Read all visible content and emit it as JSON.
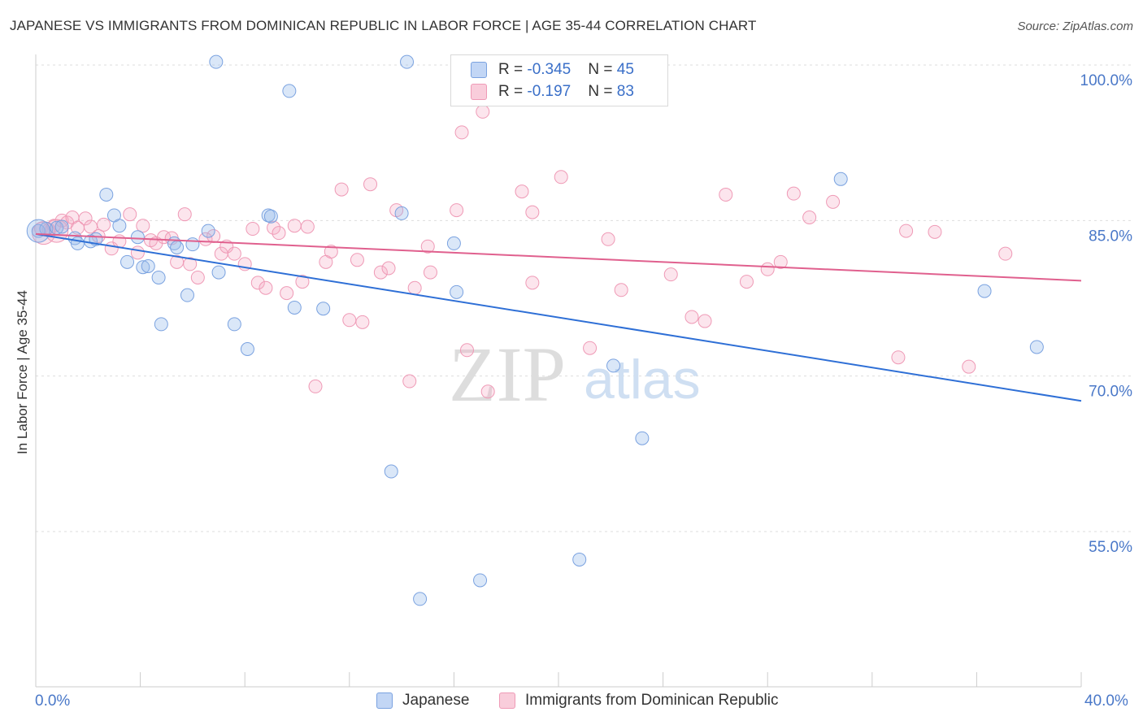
{
  "header": {
    "title": "JAPANESE VS IMMIGRANTS FROM DOMINICAN REPUBLIC IN LABOR FORCE | AGE 35-44 CORRELATION CHART",
    "source": "Source: ZipAtlas.com"
  },
  "watermark": {
    "zip": "ZIP",
    "atlas": "atlas"
  },
  "legend_top": {
    "rows": [
      {
        "r_label": "R = ",
        "r_value": "-0.345",
        "n_label": "N = ",
        "n_value": "45"
      },
      {
        "r_label": "R = ",
        "r_value": " -0.197",
        "n_label": "N = ",
        "n_value": "83"
      }
    ]
  },
  "chart_data": {
    "type": "scatter",
    "title": "JAPANESE VS IMMIGRANTS FROM DOMINICAN REPUBLIC IN LABOR FORCE | AGE 35-44 CORRELATION CHART",
    "xlabel": "",
    "ylabel": "In Labor Force | Age 35-44",
    "xlim": [
      0,
      40
    ],
    "ylim": [
      42.5,
      103.5
    ],
    "x_tick_labels": [
      "0.0%",
      "40.0%"
    ],
    "y_ticks": [
      55,
      70,
      85,
      100
    ],
    "y_tick_labels": [
      "55.0%",
      "70.0%",
      "85.0%",
      "100.0%"
    ],
    "grid": true,
    "legend_position": "top-center",
    "colors": {
      "japanese": "#6f9fe0",
      "dominican": "#f09ab8",
      "japanese_line": "#2e6fd6",
      "dominican_line": "#e0608e",
      "axis_text": "#4a78c8"
    },
    "series": [
      {
        "name": "Japanese",
        "r": -0.345,
        "n": 45,
        "trend": {
          "x": [
            0,
            40
          ],
          "y": [
            83.7,
            67.6
          ]
        },
        "points": [
          [
            0.1,
            84.0
          ],
          [
            0.4,
            84.2
          ],
          [
            0.8,
            84.3
          ],
          [
            1.0,
            84.4
          ],
          [
            1.5,
            83.3
          ],
          [
            1.6,
            82.8
          ],
          [
            2.1,
            83.0
          ],
          [
            2.3,
            83.2
          ],
          [
            2.7,
            87.5
          ],
          [
            3.0,
            85.5
          ],
          [
            3.2,
            84.5
          ],
          [
            3.5,
            81.0
          ],
          [
            3.9,
            83.4
          ],
          [
            4.1,
            80.5
          ],
          [
            4.3,
            80.6
          ],
          [
            4.7,
            79.5
          ],
          [
            4.8,
            75.0
          ],
          [
            5.3,
            82.8
          ],
          [
            5.4,
            82.4
          ],
          [
            5.8,
            77.8
          ],
          [
            6.0,
            82.7
          ],
          [
            6.6,
            84.0
          ],
          [
            7.0,
            80.0
          ],
          [
            7.6,
            75.0
          ],
          [
            8.1,
            72.6
          ],
          [
            8.9,
            85.5
          ],
          [
            9.0,
            85.4
          ],
          [
            9.7,
            97.5
          ],
          [
            9.9,
            76.6
          ],
          [
            11.0,
            76.5
          ],
          [
            6.9,
            100.3
          ],
          [
            14.2,
            100.3
          ],
          [
            13.6,
            60.8
          ],
          [
            14.0,
            85.7
          ],
          [
            14.7,
            48.5
          ],
          [
            16.0,
            82.8
          ],
          [
            16.1,
            78.1
          ],
          [
            17.0,
            50.3
          ],
          [
            20.8,
            52.3
          ],
          [
            22.1,
            71.0
          ],
          [
            23.2,
            64.0
          ],
          [
            30.8,
            89.0
          ],
          [
            36.3,
            78.2
          ],
          [
            38.3,
            72.8
          ],
          [
            0.1,
            84.0
          ]
        ]
      },
      {
        "name": "Immigrants from Dominican Republic",
        "r": -0.197,
        "n": 83,
        "trend": {
          "x": [
            0,
            40
          ],
          "y": [
            83.7,
            79.2
          ]
        },
        "points": [
          [
            0.2,
            84.2
          ],
          [
            0.5,
            84.1
          ],
          [
            0.7,
            84.5
          ],
          [
            1.0,
            85.0
          ],
          [
            1.2,
            84.8
          ],
          [
            1.4,
            85.3
          ],
          [
            1.6,
            84.3
          ],
          [
            1.9,
            85.2
          ],
          [
            2.1,
            84.4
          ],
          [
            2.4,
            83.5
          ],
          [
            2.6,
            84.6
          ],
          [
            2.9,
            82.3
          ],
          [
            3.2,
            83.0
          ],
          [
            3.6,
            85.6
          ],
          [
            3.9,
            81.9
          ],
          [
            4.1,
            84.5
          ],
          [
            4.4,
            83.1
          ],
          [
            4.6,
            82.8
          ],
          [
            4.9,
            83.4
          ],
          [
            5.2,
            83.3
          ],
          [
            5.4,
            81.0
          ],
          [
            5.7,
            85.6
          ],
          [
            5.9,
            80.8
          ],
          [
            6.2,
            79.5
          ],
          [
            6.5,
            83.2
          ],
          [
            6.8,
            83.5
          ],
          [
            7.1,
            81.8
          ],
          [
            7.3,
            82.5
          ],
          [
            7.6,
            81.8
          ],
          [
            8.0,
            80.8
          ],
          [
            8.3,
            84.2
          ],
          [
            8.5,
            79.0
          ],
          [
            8.8,
            78.5
          ],
          [
            9.1,
            84.3
          ],
          [
            9.3,
            83.8
          ],
          [
            9.6,
            78.0
          ],
          [
            9.9,
            84.5
          ],
          [
            10.2,
            79.1
          ],
          [
            10.4,
            84.4
          ],
          [
            10.7,
            69.0
          ],
          [
            11.1,
            81.0
          ],
          [
            11.3,
            82.0
          ],
          [
            11.7,
            88.0
          ],
          [
            12.0,
            75.4
          ],
          [
            12.3,
            81.2
          ],
          [
            12.5,
            75.2
          ],
          [
            12.8,
            88.5
          ],
          [
            13.2,
            80.0
          ],
          [
            13.5,
            80.4
          ],
          [
            13.8,
            86.0
          ],
          [
            14.3,
            69.5
          ],
          [
            14.5,
            78.5
          ],
          [
            15.0,
            82.5
          ],
          [
            15.1,
            80.0
          ],
          [
            16.1,
            86.0
          ],
          [
            16.3,
            93.5
          ],
          [
            16.5,
            72.5
          ],
          [
            17.1,
            95.5
          ],
          [
            17.3,
            68.5
          ],
          [
            18.6,
            87.8
          ],
          [
            19.0,
            85.8
          ],
          [
            19.0,
            79.0
          ],
          [
            20.1,
            89.2
          ],
          [
            21.2,
            72.7
          ],
          [
            21.9,
            83.2
          ],
          [
            22.4,
            78.3
          ],
          [
            24.3,
            79.8
          ],
          [
            25.1,
            75.7
          ],
          [
            25.6,
            75.3
          ],
          [
            26.4,
            87.5
          ],
          [
            27.2,
            79.1
          ],
          [
            28.0,
            80.3
          ],
          [
            28.5,
            81.0
          ],
          [
            29.0,
            87.6
          ],
          [
            29.6,
            85.3
          ],
          [
            30.5,
            86.8
          ],
          [
            33.0,
            71.8
          ],
          [
            33.3,
            84.0
          ],
          [
            34.4,
            83.9
          ],
          [
            35.7,
            70.9
          ],
          [
            37.1,
            81.8
          ],
          [
            0.3,
            83.8
          ],
          [
            0.8,
            84.0
          ]
        ]
      }
    ]
  },
  "legend_bottom": {
    "items": [
      "Japanese",
      "Immigrants from Dominican Republic"
    ]
  }
}
